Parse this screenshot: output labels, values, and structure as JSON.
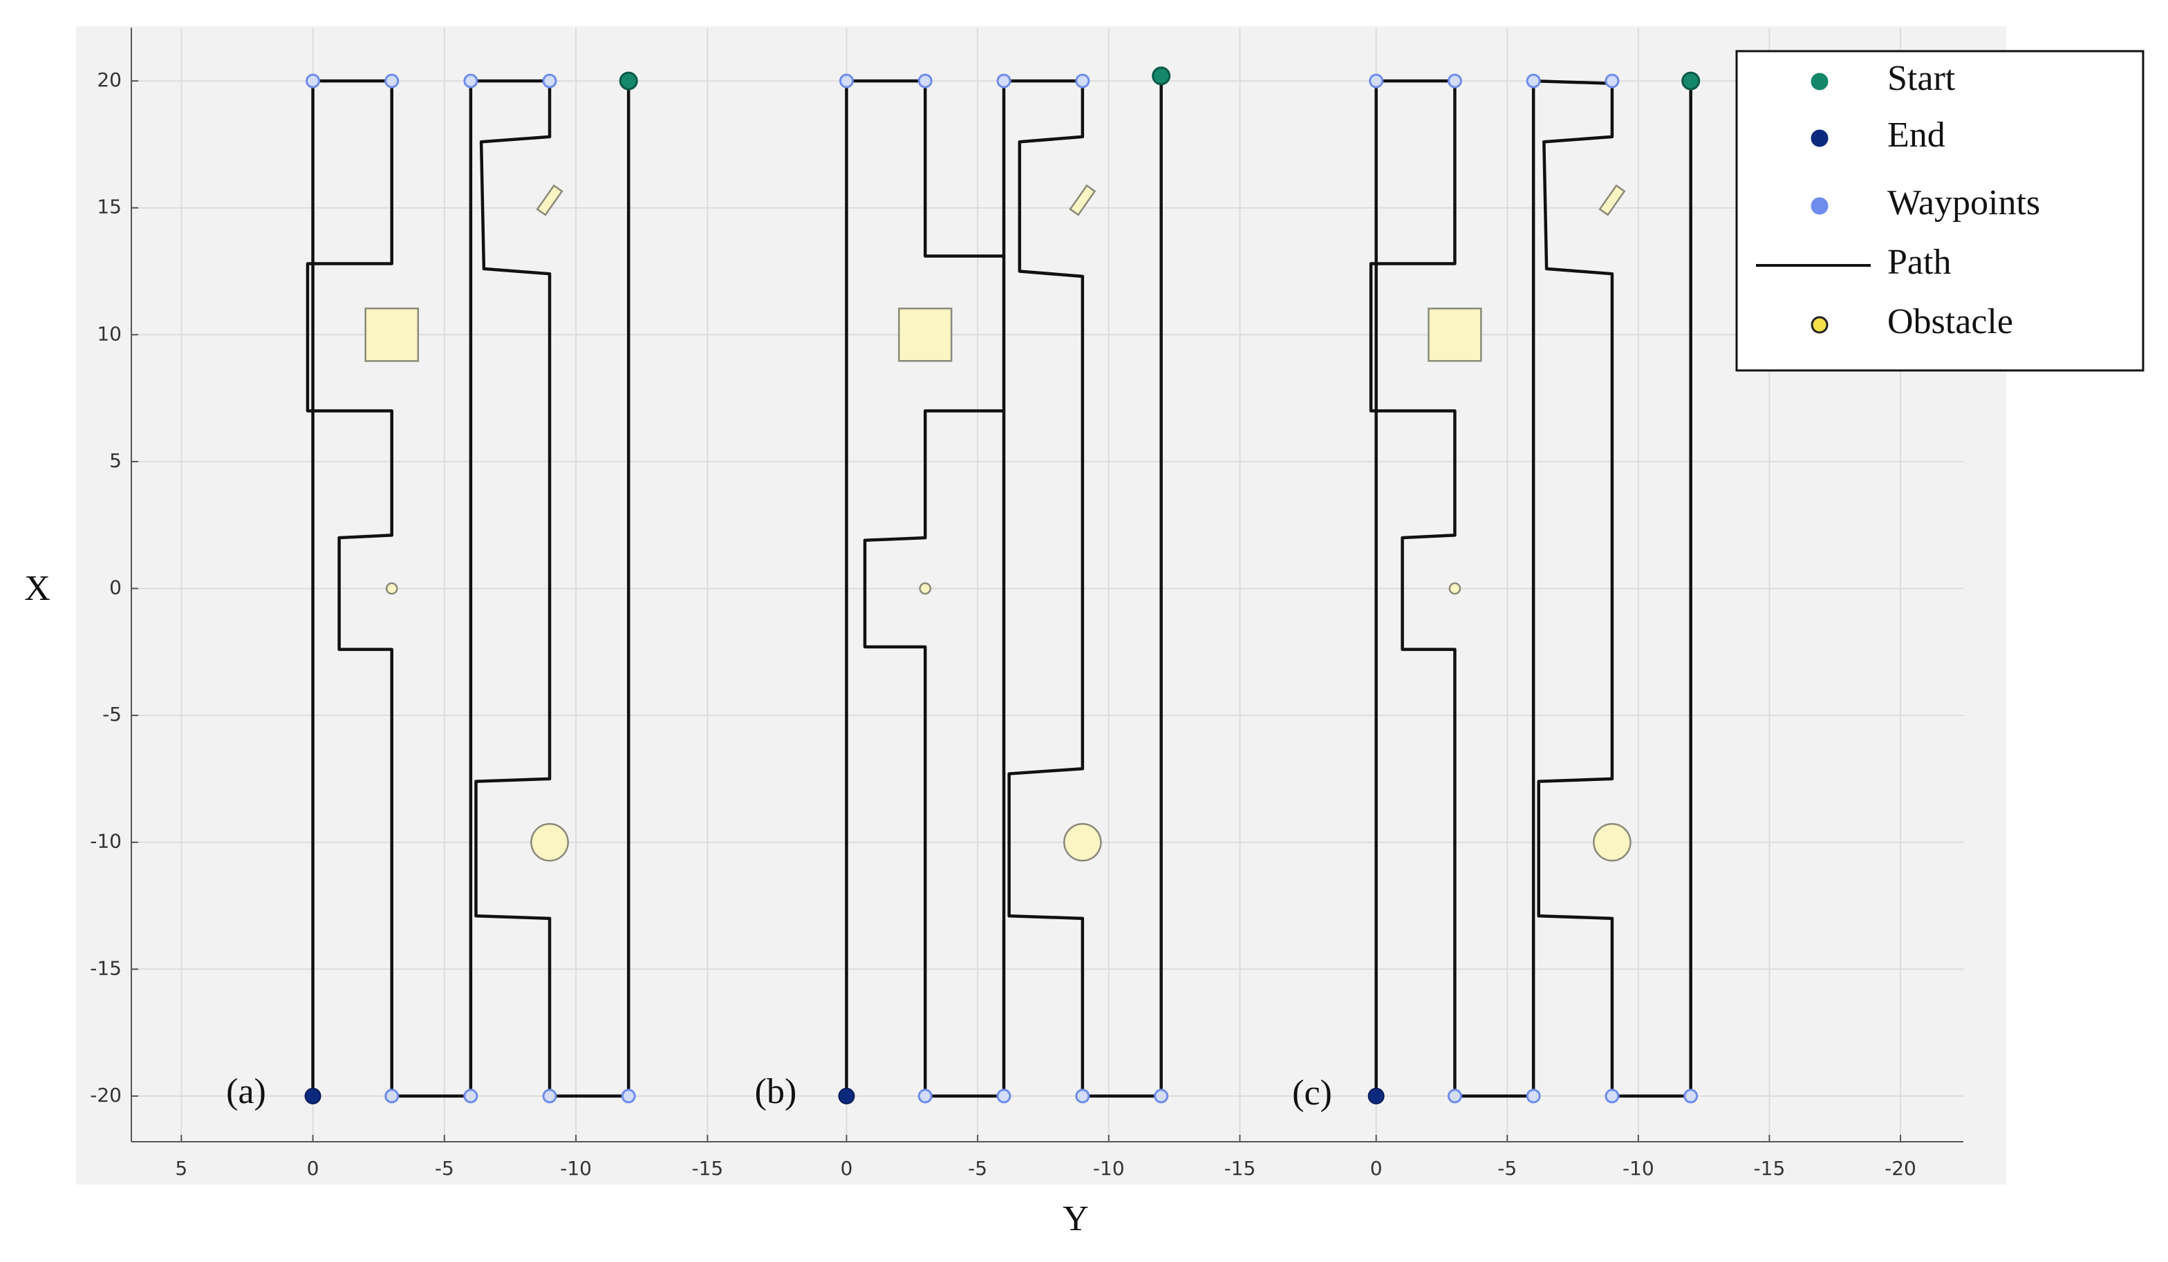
{
  "x_label": "Y",
  "y_label": "X",
  "legend": {
    "position": "upper right",
    "items": [
      {
        "name": "Start",
        "color": "#15876b",
        "marker": "circle"
      },
      {
        "name": "End",
        "color": "#0b2a7e",
        "marker": "circle"
      },
      {
        "name": "Waypoints",
        "color": "#6d8cec",
        "marker": "circle"
      },
      {
        "name": "Path",
        "color": "#111111",
        "marker": "line"
      },
      {
        "name": "Obstacle",
        "color": "#f3e04a",
        "marker": "circle"
      }
    ]
  },
  "chart_data": [
    {
      "type": "line",
      "label": "(a)",
      "xlim": [
        6.9,
        -15.7
      ],
      "xticks": [
        5,
        0,
        -5,
        -10,
        -15
      ],
      "ylim": [
        -21.8,
        22.1
      ],
      "yticks": [
        20,
        15,
        10,
        5,
        0,
        -5,
        -10,
        -15,
        -20
      ],
      "grid": true,
      "path": {
        "x": [
          -12,
          -12,
          -9,
          -9,
          -6.2,
          -6.2,
          -9,
          -9,
          -6.5,
          -6.4,
          -9,
          -9,
          -6,
          -6,
          -3,
          -3,
          -1,
          -1,
          -3,
          -3,
          0.2,
          0.2,
          -3,
          -3,
          0,
          0
        ],
        "y": [
          20,
          -20,
          -20,
          -13,
          -12.9,
          -7.6,
          -7.5,
          12.4,
          12.6,
          17.6,
          17.8,
          20,
          20,
          -20,
          -20,
          -2.4,
          -2.4,
          2,
          2.1,
          7,
          7,
          12.8,
          12.8,
          20,
          20,
          -20
        ]
      },
      "waypoints": {
        "x": [
          0,
          -3,
          -6,
          -9,
          -3,
          -6,
          -9,
          -12
        ],
        "y": [
          20,
          20,
          20,
          20,
          -20,
          -20,
          -20,
          -20
        ]
      },
      "start": {
        "x": -12,
        "y": 20
      },
      "end": {
        "x": 0,
        "y": -20
      },
      "obstacles": [
        {
          "shape": "square",
          "x": -3,
          "y": 10,
          "size": 2
        },
        {
          "shape": "circle",
          "x": -3,
          "y": 0,
          "size": 0.4
        },
        {
          "shape": "circle",
          "x": -9,
          "y": -10,
          "size": 1.4
        },
        {
          "shape": "rectangle",
          "x": -9,
          "y": 15.3,
          "size": 1.1,
          "angle": 55
        }
      ]
    },
    {
      "type": "line",
      "label": "(b)",
      "xlim": [
        4.6,
        -15.7
      ],
      "xticks": [
        0,
        -5,
        -10,
        -15
      ],
      "ylim": [
        -21.8,
        22.1
      ],
      "grid": true,
      "path": {
        "x": [
          -12,
          -12,
          -9,
          -9,
          -6.2,
          -6.2,
          -9,
          -9,
          -6.6,
          -6.6,
          -9,
          -9,
          -6,
          -6,
          -3,
          -3,
          -0.7,
          -0.7,
          -3,
          -3,
          -6,
          -6,
          -3,
          -3,
          0,
          0
        ],
        "y": [
          20.2,
          -20,
          -20,
          -13,
          -12.9,
          -7.3,
          -7.1,
          12.3,
          12.5,
          17.6,
          17.8,
          20,
          20,
          -20,
          -20,
          -2.3,
          -2.3,
          1.9,
          2,
          7,
          7,
          13.1,
          13.1,
          20,
          20,
          -20
        ]
      },
      "waypoints": {
        "x": [
          0,
          -3,
          -6,
          -9,
          -3,
          -6,
          -9,
          -12
        ],
        "y": [
          20,
          20,
          20,
          20,
          -20,
          -20,
          -20,
          -20
        ]
      },
      "start": {
        "x": -12,
        "y": 20.2
      },
      "end": {
        "x": 0,
        "y": -20
      },
      "obstacles": [
        {
          "shape": "square",
          "x": -3,
          "y": 10,
          "size": 2
        },
        {
          "shape": "circle",
          "x": -3,
          "y": 0,
          "size": 0.4
        },
        {
          "shape": "circle",
          "x": -9,
          "y": -10,
          "size": 1.4
        },
        {
          "shape": "rectangle",
          "x": -9,
          "y": 15.3,
          "size": 1.1,
          "angle": 55
        }
      ]
    },
    {
      "type": "line",
      "label": "(c)",
      "xlim": [
        4.5,
        -22.4
      ],
      "xticks": [
        0,
        -5,
        -10,
        -15,
        -20
      ],
      "ylim": [
        -21.8,
        22.1
      ],
      "grid": true,
      "path": {
        "x": [
          -12,
          -12,
          -9,
          -9,
          -6.2,
          -6.2,
          -9,
          -9,
          -6.5,
          -6.4,
          -9,
          -9,
          -6,
          -6,
          -3,
          -3,
          -1,
          -1,
          -3,
          -3,
          0.2,
          0.2,
          -3,
          -3,
          0,
          0
        ],
        "y": [
          20,
          -20,
          -20,
          -13,
          -12.9,
          -7.6,
          -7.5,
          12.4,
          12.6,
          17.6,
          17.8,
          19.9,
          20,
          -20,
          -20,
          -2.4,
          -2.4,
          2,
          2.1,
          7,
          7,
          12.8,
          12.8,
          20,
          20,
          -20
        ]
      },
      "waypoints": {
        "x": [
          0,
          -3,
          -6,
          -9,
          -3,
          -6,
          -9,
          -12
        ],
        "y": [
          20,
          20,
          20,
          20,
          -20,
          -20,
          -20,
          -20
        ]
      },
      "start": {
        "x": -12,
        "y": 20
      },
      "end": {
        "x": 0,
        "y": -20
      },
      "obstacles": [
        {
          "shape": "square",
          "x": -3,
          "y": 10,
          "size": 2
        },
        {
          "shape": "circle",
          "x": -3,
          "y": 0,
          "size": 0.4
        },
        {
          "shape": "circle",
          "x": -9,
          "y": -10,
          "size": 1.4
        },
        {
          "shape": "rectangle",
          "x": -9,
          "y": 15.3,
          "size": 1.1,
          "angle": 55
        }
      ]
    }
  ]
}
